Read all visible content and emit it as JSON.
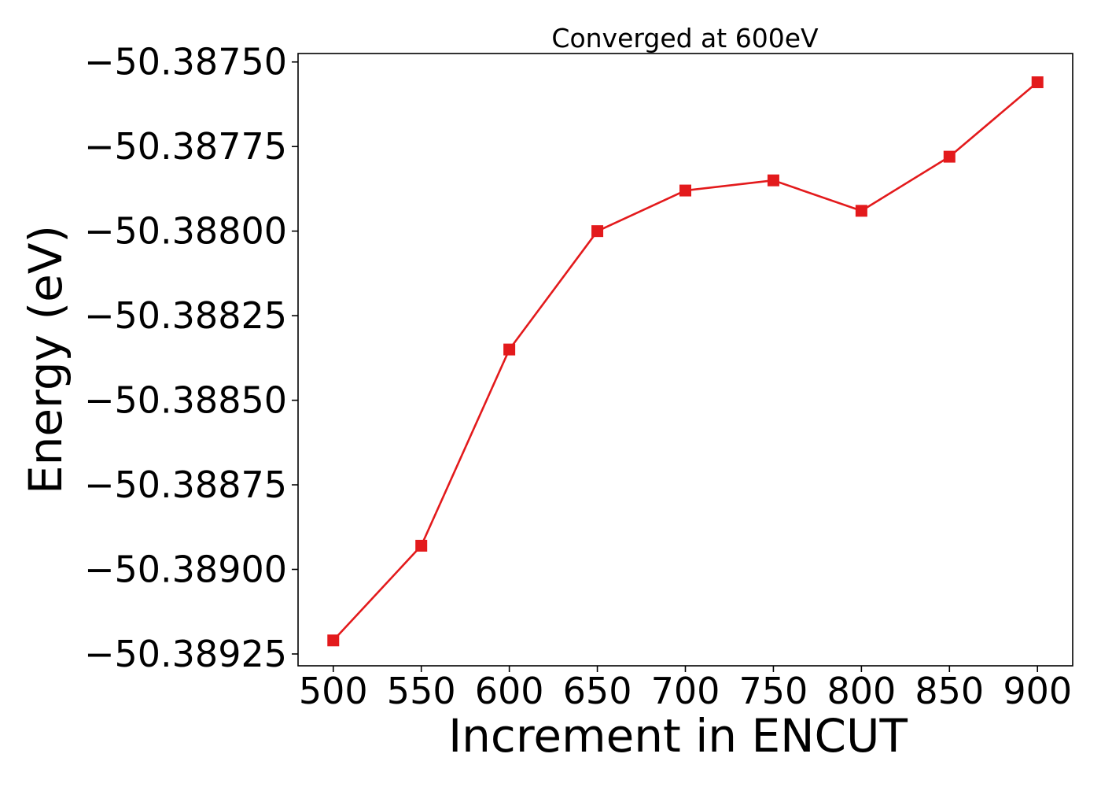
{
  "chart_data": {
    "type": "line",
    "title": "Converged at 600eV",
    "xlabel": "Increment in ENCUT",
    "ylabel": "Energy (eV)",
    "x": [
      500,
      550,
      600,
      650,
      700,
      750,
      800,
      850,
      900
    ],
    "series": [
      {
        "values": [
          -50.38921,
          -50.38893,
          -50.38835,
          -50.388,
          -50.38788,
          -50.38785,
          -50.38794,
          -50.38778,
          -50.38756
        ],
        "color": "#e31a1c",
        "marker": "square"
      }
    ],
    "xticks": [
      500,
      550,
      600,
      650,
      700,
      750,
      800,
      850,
      900
    ],
    "xtick_labels": [
      "500",
      "550",
      "600",
      "650",
      "700",
      "750",
      "800",
      "850",
      "900"
    ],
    "yticks": [
      -50.3875,
      -50.38775,
      -50.388,
      -50.38825,
      -50.3885,
      -50.38875,
      -50.389,
      -50.38925
    ],
    "ytick_labels": [
      "−50.38750",
      "−50.38775",
      "−50.38800",
      "−50.38825",
      "−50.38850",
      "−50.38875",
      "−50.38900",
      "−50.38925"
    ],
    "xlim": [
      480,
      920
    ],
    "ylim": [
      -50.389285,
      -50.387475
    ],
    "grid": false,
    "legend": "none"
  }
}
